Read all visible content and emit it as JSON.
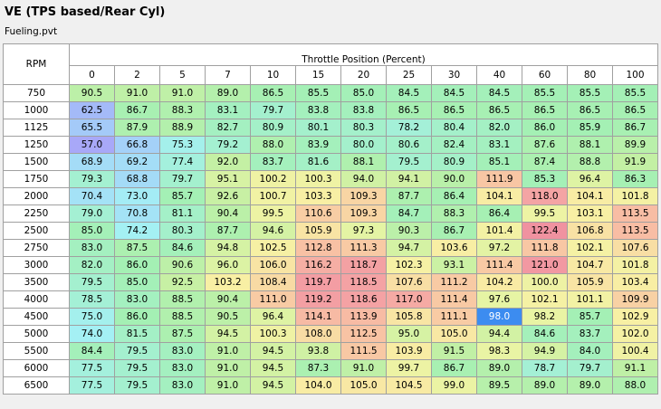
{
  "window": {
    "title": "VE (TPS based/Rear Cyl)",
    "file": "Fueling.pvt"
  },
  "table": {
    "row_axis_label": "RPM",
    "col_axis_label": "Throttle Position (Percent)",
    "columns": [
      "0",
      "2",
      "5",
      "7",
      "10",
      "15",
      "20",
      "25",
      "30",
      "40",
      "60",
      "80",
      "100"
    ],
    "selected_cell": {
      "row": 13,
      "col": 9
    },
    "rows": [
      {
        "rpm": "750",
        "values": [
          "90.5",
          "91.0",
          "91.0",
          "89.0",
          "86.5",
          "85.5",
          "85.0",
          "84.5",
          "84.5",
          "84.5",
          "85.5",
          "85.5",
          "85.5"
        ]
      },
      {
        "rpm": "1000",
        "values": [
          "62.5",
          "86.7",
          "88.3",
          "83.1",
          "79.7",
          "83.8",
          "83.8",
          "86.5",
          "86.5",
          "86.5",
          "86.5",
          "86.5",
          "86.5"
        ]
      },
      {
        "rpm": "1125",
        "values": [
          "65.5",
          "87.9",
          "88.9",
          "82.7",
          "80.9",
          "80.1",
          "80.3",
          "78.2",
          "80.4",
          "82.0",
          "86.0",
          "85.9",
          "86.7"
        ]
      },
      {
        "rpm": "1250",
        "values": [
          "57.0",
          "66.8",
          "75.3",
          "79.2",
          "88.0",
          "83.9",
          "80.0",
          "80.6",
          "82.4",
          "83.1",
          "87.6",
          "88.1",
          "89.9"
        ]
      },
      {
        "rpm": "1500",
        "values": [
          "68.9",
          "69.2",
          "77.4",
          "92.0",
          "83.7",
          "81.6",
          "88.1",
          "79.5",
          "80.9",
          "85.1",
          "87.4",
          "88.8",
          "91.9"
        ]
      },
      {
        "rpm": "1750",
        "values": [
          "79.3",
          "68.8",
          "79.7",
          "95.1",
          "100.2",
          "100.3",
          "94.0",
          "94.1",
          "90.0",
          "111.9",
          "85.3",
          "96.4",
          "86.3"
        ]
      },
      {
        "rpm": "2000",
        "values": [
          "70.4",
          "73.0",
          "85.7",
          "92.6",
          "100.7",
          "103.3",
          "109.3",
          "87.7",
          "86.4",
          "104.1",
          "118.0",
          "104.1",
          "101.8"
        ]
      },
      {
        "rpm": "2250",
        "values": [
          "79.0",
          "70.8",
          "81.1",
          "90.4",
          "99.5",
          "110.6",
          "109.3",
          "84.7",
          "88.3",
          "86.4",
          "99.5",
          "103.1",
          "113.5"
        ]
      },
      {
        "rpm": "2500",
        "values": [
          "85.0",
          "74.2",
          "80.3",
          "87.7",
          "94.6",
          "105.9",
          "97.3",
          "90.3",
          "86.7",
          "101.4",
          "122.4",
          "106.8",
          "113.5"
        ]
      },
      {
        "rpm": "2750",
        "values": [
          "83.0",
          "87.5",
          "84.6",
          "94.8",
          "102.5",
          "112.8",
          "111.3",
          "94.7",
          "103.6",
          "97.2",
          "111.8",
          "102.1",
          "107.6"
        ]
      },
      {
        "rpm": "3000",
        "values": [
          "82.0",
          "86.0",
          "90.6",
          "96.0",
          "106.0",
          "116.2",
          "118.7",
          "102.3",
          "93.1",
          "111.4",
          "121.0",
          "104.7",
          "101.8"
        ]
      },
      {
        "rpm": "3500",
        "values": [
          "79.5",
          "85.0",
          "92.5",
          "103.2",
          "108.4",
          "119.7",
          "118.5",
          "107.6",
          "111.2",
          "104.2",
          "100.0",
          "105.9",
          "103.4"
        ]
      },
      {
        "rpm": "4000",
        "values": [
          "78.5",
          "83.0",
          "88.5",
          "90.4",
          "111.0",
          "119.2",
          "118.6",
          "117.0",
          "111.4",
          "97.6",
          "102.1",
          "101.1",
          "109.9"
        ]
      },
      {
        "rpm": "4500",
        "values": [
          "75.0",
          "86.0",
          "88.5",
          "90.5",
          "96.4",
          "114.1",
          "113.9",
          "105.8",
          "111.1",
          "98.0",
          "98.2",
          "85.7",
          "102.9"
        ]
      },
      {
        "rpm": "5000",
        "values": [
          "74.0",
          "81.5",
          "87.5",
          "94.5",
          "100.3",
          "108.0",
          "112.5",
          "95.0",
          "105.0",
          "94.4",
          "84.6",
          "83.7",
          "102.0"
        ]
      },
      {
        "rpm": "5500",
        "values": [
          "84.4",
          "79.5",
          "83.0",
          "91.0",
          "94.5",
          "93.8",
          "111.5",
          "103.9",
          "91.5",
          "98.3",
          "94.9",
          "84.0",
          "100.4"
        ]
      },
      {
        "rpm": "6000",
        "values": [
          "77.5",
          "79.5",
          "83.0",
          "91.0",
          "94.5",
          "87.3",
          "91.0",
          "99.7",
          "86.7",
          "89.0",
          "78.7",
          "79.7",
          "91.1"
        ]
      },
      {
        "rpm": "6500",
        "values": [
          "77.5",
          "79.5",
          "83.0",
          "91.0",
          "94.5",
          "104.0",
          "105.0",
          "104.5",
          "99.0",
          "89.5",
          "89.0",
          "89.0",
          "88.0"
        ]
      }
    ]
  },
  "colors": {
    "scale": [
      {
        "v": 57,
        "c": "#a8a8f8"
      },
      {
        "v": 63,
        "c": "#a4bcf8"
      },
      {
        "v": 68,
        "c": "#a4d8f8"
      },
      {
        "v": 74,
        "c": "#a4f0f4"
      },
      {
        "v": 80,
        "c": "#a4f0cc"
      },
      {
        "v": 86,
        "c": "#a4f0b4"
      },
      {
        "v": 92,
        "c": "#c4f0a4"
      },
      {
        "v": 98,
        "c": "#e8f4a4"
      },
      {
        "v": 103,
        "c": "#f8f0a4"
      },
      {
        "v": 108,
        "c": "#f8dca4"
      },
      {
        "v": 113,
        "c": "#f8c0a4"
      },
      {
        "v": 118,
        "c": "#f4a4a4"
      },
      {
        "v": 123,
        "c": "#f090a0"
      }
    ],
    "selected": "#3c8cf0"
  }
}
